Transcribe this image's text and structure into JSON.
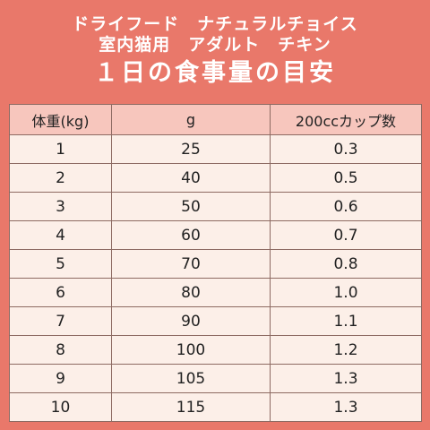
{
  "header": {
    "line1": "ドライフード　ナチュラルチョイス",
    "line2": "室内猫用　アダルト　チキン",
    "title": "１日の食事量の目安"
  },
  "table": {
    "columns": [
      "体重(kg)",
      "g",
      "200ccカップ数"
    ],
    "rows": [
      [
        "1",
        "25",
        "0.3"
      ],
      [
        "2",
        "40",
        "0.5"
      ],
      [
        "3",
        "50",
        "0.6"
      ],
      [
        "4",
        "60",
        "0.7"
      ],
      [
        "5",
        "70",
        "0.8"
      ],
      [
        "6",
        "80",
        "1.0"
      ],
      [
        "7",
        "90",
        "1.1"
      ],
      [
        "8",
        "100",
        "1.2"
      ],
      [
        "9",
        "105",
        "1.3"
      ],
      [
        "10",
        "115",
        "1.3"
      ]
    ]
  }
}
